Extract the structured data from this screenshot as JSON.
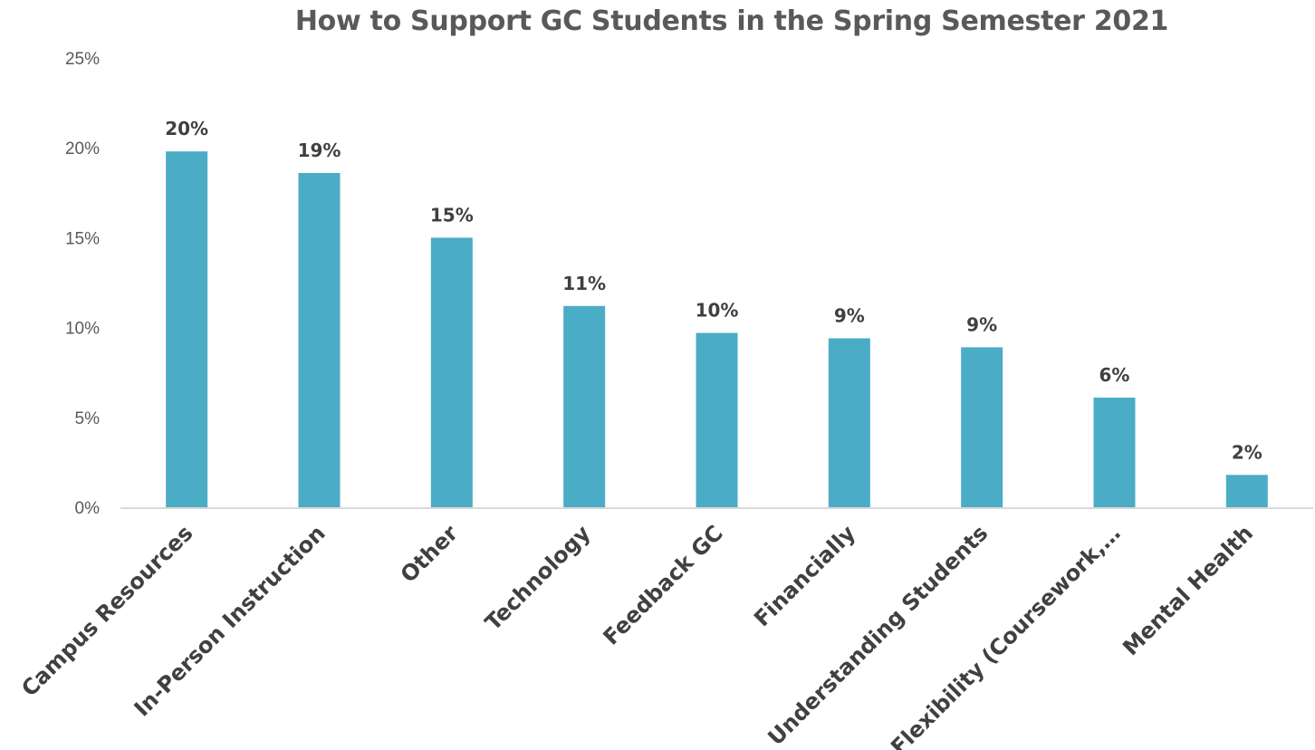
{
  "chart_data": {
    "type": "bar",
    "title": "How to Support GC Students in the Spring Semester 2021",
    "categories": [
      "Campus Resources",
      "In-Person Instruction",
      "Other",
      "Technology",
      "Feedback GC",
      "Financially",
      "Understanding Students",
      "Flexibility (Coursework,…",
      "Mental Health"
    ],
    "values": [
      19.8,
      18.6,
      15.0,
      11.2,
      9.7,
      9.4,
      8.9,
      6.1,
      1.8
    ],
    "data_labels": [
      "20%",
      "19%",
      "15%",
      "11%",
      "10%",
      "9%",
      "9%",
      "6%",
      "2%"
    ],
    "y_ticks": [
      "0%",
      "5%",
      "10%",
      "15%",
      "20%",
      "25%"
    ],
    "ylim": [
      0,
      25
    ],
    "xlabel": "",
    "ylabel": "",
    "grid": false,
    "legend": "none",
    "colors": {
      "bar": "#4BACC6",
      "axis": "#D9D9D9"
    }
  }
}
